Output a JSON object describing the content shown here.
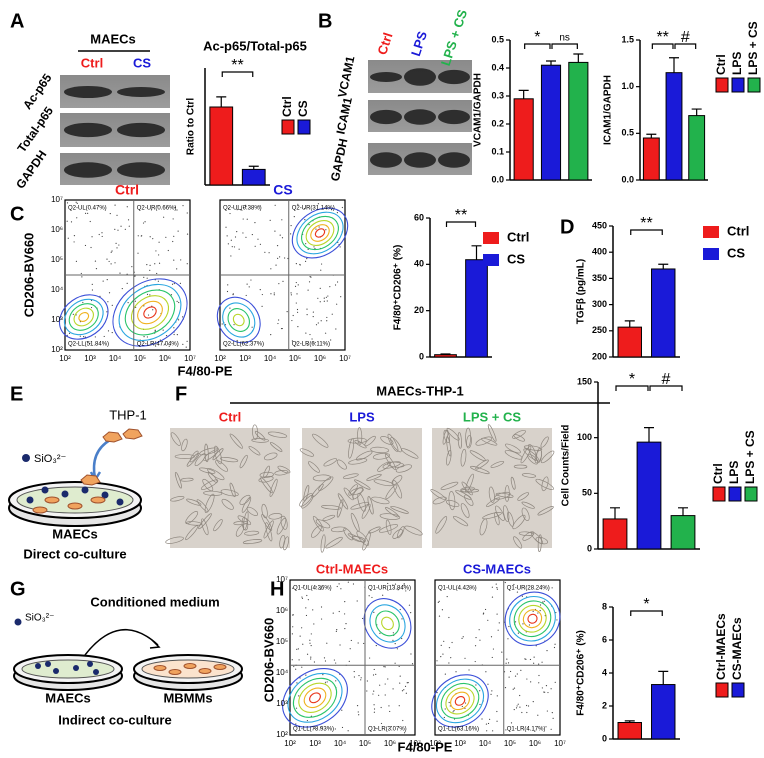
{
  "chart_data": [
    {
      "type": "bar",
      "title": "Ac-p65/Total-p65",
      "y_label": "Ratio to Ctrl",
      "categories": [
        "Ctrl",
        "CS"
      ],
      "values": [
        1.0,
        0.2
      ],
      "errors": [
        0.13,
        0.04
      ],
      "colors": [
        "#ee1c1c",
        "#1a1ad8"
      ],
      "ylim": [
        0,
        1.5
      ],
      "annotations": [
        "**"
      ]
    },
    {
      "type": "bar",
      "y_label": "VCAM1/GAPDH",
      "categories": [
        "Ctrl",
        "LPS",
        "LPS + CS"
      ],
      "values": [
        0.29,
        0.41,
        0.42
      ],
      "errors": [
        0.03,
        0.015,
        0.03
      ],
      "colors": [
        "#ee1c1c",
        "#1a1ad8",
        "#22b24c"
      ],
      "ylim": [
        0,
        0.5
      ],
      "yticks": [
        {
          "value": 0,
          "label": "0.0"
        },
        {
          "value": 0.1,
          "label": "0.1"
        },
        {
          "value": 0.2,
          "label": "0.2"
        },
        {
          "value": 0.3,
          "label": "0.3"
        },
        {
          "value": 0.4,
          "label": "0.4"
        },
        {
          "value": 0.5,
          "label": "0.5"
        }
      ],
      "annotations": [
        "*",
        "ns"
      ]
    },
    {
      "type": "bar",
      "y_label": "ICAM1/GAPDH",
      "categories": [
        "Ctrl",
        "LPS",
        "LPS + CS"
      ],
      "values": [
        0.45,
        1.15,
        0.69
      ],
      "errors": [
        0.04,
        0.16,
        0.07
      ],
      "colors": [
        "#ee1c1c",
        "#1a1ad8",
        "#22b24c"
      ],
      "ylim": [
        0,
        1.5
      ],
      "yticks": [
        {
          "value": 0,
          "label": "0.0"
        },
        {
          "value": 0.5,
          "label": "0.5"
        },
        {
          "value": 1.0,
          "label": "1.0"
        },
        {
          "value": 1.5,
          "label": "1.5"
        }
      ],
      "annotations": [
        "**",
        "#"
      ]
    },
    {
      "type": "bar",
      "y_label": "F4/80⁺CD206⁺ (%)",
      "categories": [
        "Ctrl",
        "CS"
      ],
      "values": [
        1,
        42
      ],
      "errors": [
        0.3,
        6
      ],
      "colors": [
        "#ee1c1c",
        "#1a1ad8"
      ],
      "ylim": [
        0,
        60
      ],
      "yticks": [
        0,
        20,
        40,
        60
      ],
      "annotations": [
        "**"
      ]
    },
    {
      "type": "bar",
      "y_label": "TGFβ (pg/mL)",
      "categories": [
        "Ctrl",
        "CS"
      ],
      "values": [
        257,
        368
      ],
      "errors": [
        12,
        9
      ],
      "colors": [
        "#ee1c1c",
        "#1a1ad8"
      ],
      "ylim": [
        200,
        450
      ],
      "yticks": [
        200,
        250,
        300,
        350,
        400,
        450
      ],
      "annotations": [
        "**"
      ]
    },
    {
      "type": "bar",
      "y_label": "Cell Counts/Field",
      "categories": [
        "Ctrl",
        "LPS",
        "LPS + CS"
      ],
      "values": [
        27,
        96,
        30
      ],
      "errors": [
        10,
        13,
        7
      ],
      "colors": [
        "#ee1c1c",
        "#1a1ad8",
        "#22b24c"
      ],
      "ylim": [
        0,
        150
      ],
      "yticks": [
        0,
        50,
        100,
        150
      ],
      "annotations": [
        "*",
        "#"
      ]
    },
    {
      "type": "bar",
      "y_label": "F4/80⁺CD206⁺ (%)",
      "categories": [
        "Ctrl-MAECs",
        "CS-MAECs"
      ],
      "values": [
        1.0,
        3.3
      ],
      "errors": [
        0.1,
        0.8
      ],
      "colors": [
        "#ee1c1c",
        "#1a1ad8"
      ],
      "ylim": [
        0,
        8
      ],
      "yticks": [
        0,
        2,
        4,
        6,
        8
      ],
      "annotations": [
        "*"
      ]
    }
  ],
  "panels": {
    "letters": [
      "A",
      "B",
      "C",
      "D",
      "E",
      "F",
      "G",
      "H"
    ],
    "a": {
      "group": "MAECs",
      "lanes": [
        "Ctrl",
        "CS"
      ],
      "blots": [
        "Ac-p65",
        "Total-p65",
        "GAPDH"
      ]
    },
    "b": {
      "lanes": [
        "Ctrl",
        "LPS",
        "LPS + CS"
      ],
      "blots": [
        "VCAM1",
        "ICAM1",
        "GAPDH"
      ]
    },
    "c": {
      "y_label": "CD206-BV660",
      "x_label": "F4/80-PE",
      "ticks": [
        "10²",
        "10³",
        "10⁴",
        "10⁵",
        "10⁶",
        "10⁷"
      ],
      "plots": [
        {
          "title": "Ctrl",
          "quadrants": [
            "Q2-UL(0.47%)",
            "Q2-UR(0.66%)",
            "Q2-LL(51.84%)",
            "Q2-LR(47.04%)"
          ]
        },
        {
          "title": "CS",
          "quadrants": [
            "Q2-UL(0.38%)",
            "Q2-UR(31.14%)",
            "Q2-LL(62.37%)",
            "Q2-LR(6.11%)"
          ]
        }
      ]
    },
    "e": {
      "cells": "THP-1",
      "ion": "SiO₃²⁻",
      "dish": "MAECs",
      "caption": "Direct co-culture"
    },
    "f": {
      "title": "MAECs-THP-1",
      "images": [
        "Ctrl",
        "LPS",
        "LPS + CS"
      ]
    },
    "g": {
      "ion": "SiO₃²⁻",
      "arrow": "Conditioned medium",
      "dishes": [
        "MAECs",
        "MBMMs"
      ],
      "caption": "Indirect co-culture"
    },
    "h": {
      "y_label": "CD206-BV660",
      "x_label": "F4/80-PE",
      "ticks": [
        "10²",
        "10³",
        "10⁴",
        "10⁵",
        "10⁶",
        "10⁷"
      ],
      "plots": [
        {
          "title": "Ctrl-MAECs",
          "quadrants": [
            "Q1-UL(4.36%)",
            "Q1-UR(13.84%)",
            "Q1-LL(78.93%)",
            "Q1-LR(3.07%)"
          ]
        },
        {
          "title": "CS-MAECs",
          "quadrants": [
            "Q1-UL(4.42%)",
            "Q1-UR(28.24%)",
            "Q1-LL(63.16%)",
            "Q1-LR(4.17%)"
          ]
        }
      ]
    }
  }
}
